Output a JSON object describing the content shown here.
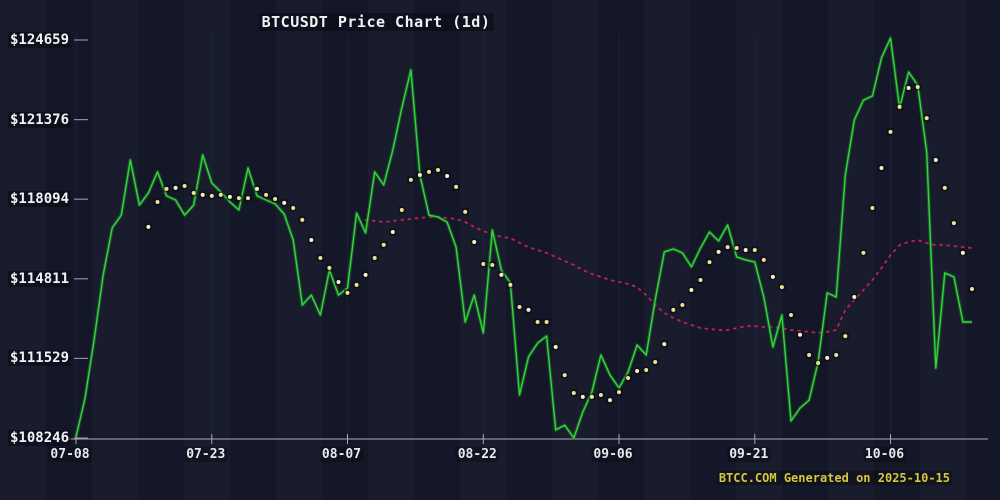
{
  "title": "BTCUSDT Price Chart (1d)",
  "footer": {
    "text": "BTCC.COM Generated on 2025-10-15"
  },
  "colors": {
    "background": "#151829",
    "price_line": "#34d63c",
    "price_glow": "#1d8f28",
    "dotted_yellow": "#ece291",
    "dotted_red": "#bf2050",
    "axis": "#a9adb8",
    "gridline": "#26335f",
    "text": "#f2f2f4",
    "footer_text": "#d6c83a"
  },
  "chart_data": {
    "type": "line",
    "title": "BTCUSDT Price Chart (1d)",
    "xlabel": "",
    "ylabel": "",
    "grid": "faint vertical gridlines at x ticks",
    "legend": "none",
    "start_date": "07-08",
    "end_date": "10-15",
    "days_total": 100,
    "ylim": [
      108246,
      124659
    ],
    "y_tick_labels": [
      "$124659",
      "$121376",
      "$118094",
      "$114811",
      "$111529",
      "$108246"
    ],
    "y_tick_values": [
      124659,
      121376,
      118094,
      114811,
      111529,
      108246
    ],
    "x_tick_labels": [
      "07-08",
      "07-23",
      "08-07",
      "08-22",
      "09-06",
      "09-21",
      "10-06"
    ],
    "x_tick_days": [
      0,
      15,
      30,
      45,
      60,
      75,
      90
    ],
    "series": [
      {
        "name": "price",
        "style": "solid-line",
        "color": "#34d63c",
        "start_index": 0,
        "values": [
          108290,
          109900,
          112290,
          114970,
          116910,
          117440,
          119710,
          117850,
          118350,
          119220,
          118230,
          118060,
          117440,
          117850,
          119920,
          118760,
          118390,
          117980,
          117650,
          119380,
          118230,
          118060,
          117900,
          117480,
          116410,
          113730,
          114140,
          113320,
          115170,
          114140,
          114430,
          117520,
          116700,
          119220,
          118680,
          120120,
          121860,
          123420,
          119090,
          117440,
          117360,
          117150,
          116120,
          113030,
          114140,
          112580,
          116820,
          115170,
          114640,
          110020,
          111590,
          112160,
          112450,
          108580,
          108780,
          108246,
          109320,
          110140,
          111670,
          110840,
          110310,
          110970,
          112080,
          111670,
          113940,
          115920,
          116040,
          115880,
          115300,
          116080,
          116740,
          116370,
          117030,
          115710,
          115590,
          115500,
          114060,
          112000,
          113320,
          108950,
          109480,
          109810,
          111380,
          114230,
          114060,
          119090,
          121360,
          122180,
          122350,
          123920,
          124740,
          121860,
          123340,
          122800,
          120040,
          111130,
          115050,
          114890,
          113030,
          113030
        ]
      },
      {
        "name": "ma-short-dots",
        "style": "dots",
        "color": "#ece291",
        "start_index": 8,
        "values": [
          116950,
          117980,
          118520,
          118560,
          118640,
          118350,
          118270,
          118230,
          118270,
          118190,
          118140,
          118140,
          118520,
          118270,
          118100,
          117940,
          117730,
          117240,
          116410,
          115670,
          115260,
          114680,
          114230,
          114560,
          114970,
          115670,
          116210,
          116740,
          117650,
          118890,
          119090,
          119220,
          119300,
          119050,
          118600,
          117570,
          116330,
          115420,
          115380,
          114970,
          114560,
          113650,
          113530,
          113030,
          113030,
          112000,
          110840,
          110100,
          109940,
          109940,
          110020,
          109810,
          110140,
          110720,
          111010,
          111050,
          111380,
          112120,
          113530,
          113730,
          114350,
          114760,
          115500,
          115920,
          116120,
          116080,
          116000,
          116000,
          115590,
          114890,
          114470,
          113320,
          112500,
          111670,
          111340,
          111550,
          111670,
          112450,
          114060,
          115880,
          117730,
          119380,
          120870,
          121900,
          122680,
          122720,
          121440,
          119710,
          118560,
          117110,
          115880,
          114390
        ]
      },
      {
        "name": "ma-long-dotted",
        "style": "dotted-line",
        "color": "#bf2050",
        "start_index": 32,
        "values": [
          117240,
          117200,
          117150,
          117200,
          117240,
          117280,
          117320,
          117360,
          117360,
          117320,
          117280,
          117150,
          116950,
          116780,
          116660,
          116540,
          116490,
          116290,
          116120,
          116000,
          115880,
          115710,
          115550,
          115380,
          115170,
          115010,
          114890,
          114760,
          114680,
          114600,
          114470,
          114140,
          113730,
          113400,
          113200,
          113030,
          112910,
          112780,
          112740,
          112700,
          112700,
          112780,
          112860,
          112860,
          112820,
          112820,
          112780,
          112700,
          112660,
          112620,
          112580,
          112620,
          112700,
          113530,
          113940,
          114350,
          114760,
          115260,
          115790,
          116200,
          116330,
          116410,
          116290,
          116200,
          116200,
          116160,
          116120,
          116080
        ]
      }
    ]
  }
}
